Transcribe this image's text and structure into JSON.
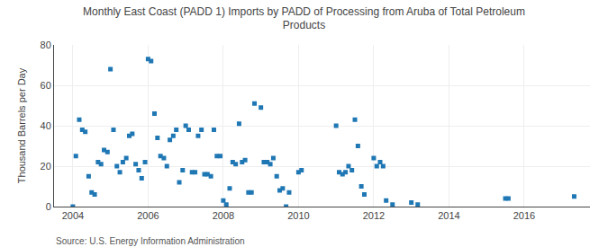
{
  "chart_data": {
    "type": "scatter",
    "title": "Monthly East Coast (PADD 1) Imports by PADD of Processing from Aruba of Total Petroleum\nProducts",
    "ylabel": "Thousand Barrels per Day",
    "annotations": [
      "Source: U.S. Energy Information Administration"
    ],
    "marker": "square",
    "grid": true,
    "xlim": [
      2003.5,
      2017.75
    ],
    "xticks": [
      2004,
      2006,
      2008,
      2010,
      2012,
      2014,
      2016
    ],
    "ylim": [
      0,
      80
    ],
    "yticks": [
      0,
      20,
      40,
      60,
      80
    ],
    "x": [
      2004.0,
      2004.08,
      2004.17,
      2004.25,
      2004.33,
      2004.42,
      2004.5,
      2004.58,
      2004.67,
      2004.75,
      2004.83,
      2004.92,
      2005.0,
      2005.08,
      2005.17,
      2005.25,
      2005.33,
      2005.42,
      2005.5,
      2005.58,
      2005.67,
      2005.75,
      2005.83,
      2005.92,
      2006.0,
      2006.08,
      2006.17,
      2006.25,
      2006.33,
      2006.42,
      2006.5,
      2006.58,
      2006.67,
      2006.75,
      2006.83,
      2006.92,
      2007.0,
      2007.08,
      2007.17,
      2007.25,
      2007.33,
      2007.42,
      2007.5,
      2007.58,
      2007.67,
      2007.75,
      2007.83,
      2007.92,
      2008.0,
      2008.08,
      2008.17,
      2008.25,
      2008.33,
      2008.42,
      2008.5,
      2008.58,
      2008.67,
      2008.75,
      2008.83,
      2009.0,
      2009.08,
      2009.17,
      2009.25,
      2009.33,
      2009.42,
      2009.5,
      2009.58,
      2009.67,
      2009.75,
      2010.0,
      2010.08,
      2011.0,
      2011.08,
      2011.17,
      2011.25,
      2011.33,
      2011.42,
      2011.5,
      2011.58,
      2011.67,
      2011.75,
      2012.0,
      2012.08,
      2012.17,
      2012.25,
      2012.33,
      2012.5,
      2013.0,
      2013.17,
      2015.5,
      2015.58,
      2017.33
    ],
    "values": [
      0,
      25,
      43,
      38,
      37,
      15,
      7,
      6,
      22,
      21,
      28,
      27,
      68,
      38,
      20,
      17,
      22,
      24,
      35,
      36,
      21,
      18,
      14,
      22,
      73,
      72,
      46,
      34,
      25,
      24,
      20,
      33,
      35,
      38,
      12,
      18,
      40,
      38,
      17,
      17,
      35,
      38,
      16,
      16,
      15,
      38,
      25,
      25,
      3,
      1,
      9,
      22,
      21,
      41,
      22,
      23,
      7,
      7,
      51,
      49,
      22,
      22,
      21,
      24,
      15,
      8,
      9,
      0,
      7,
      17,
      18,
      40,
      17,
      16,
      17,
      20,
      18,
      43,
      30,
      10,
      6,
      24,
      20,
      22,
      20,
      3,
      1,
      2,
      1,
      4,
      4,
      5
    ]
  }
}
